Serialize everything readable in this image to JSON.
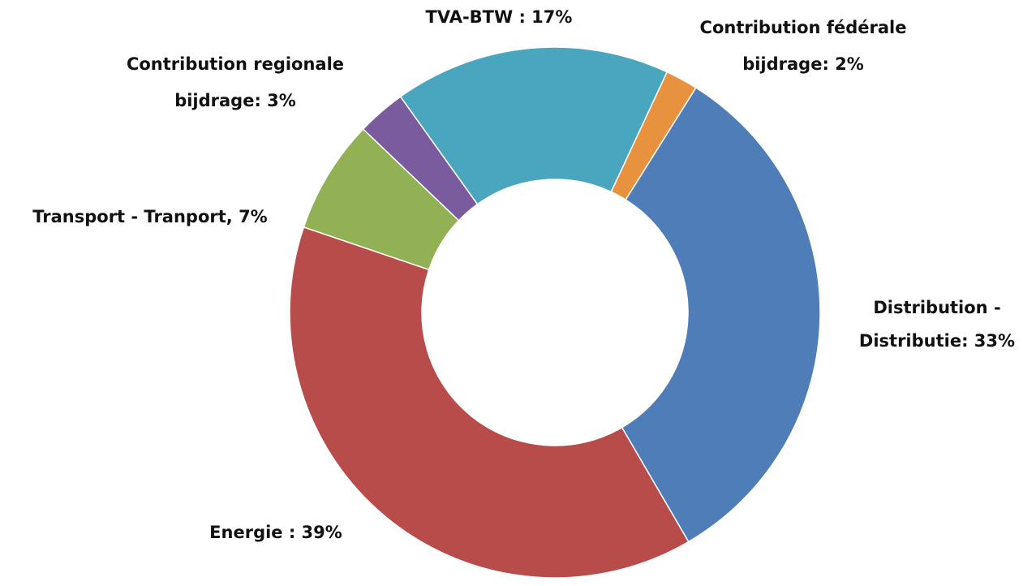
{
  "chart_data": {
    "type": "donut",
    "categories": [
      "Contribution fédérale",
      "Distribution",
      "Energie",
      "Transport",
      "Contribution regionale",
      "TVA-BTW"
    ],
    "values": [
      2,
      33,
      39,
      7,
      3,
      17
    ],
    "colors": [
      "#e8923f",
      "#4f7db8",
      "#b84c4a",
      "#92b054",
      "#7a5c9e",
      "#4aa5bf"
    ],
    "labels": [
      [
        "Contribution fédérale",
        "bijdrage: 2%"
      ],
      [
        "Distribution -",
        "Distributie:  33%"
      ],
      [
        "Energie : 39%"
      ],
      [
        "Transport - Tranport, 7%"
      ],
      [
        "Contribution regionale",
        "bijdrage:  3%"
      ],
      [
        "TVA-BTW :  17%"
      ]
    ]
  }
}
